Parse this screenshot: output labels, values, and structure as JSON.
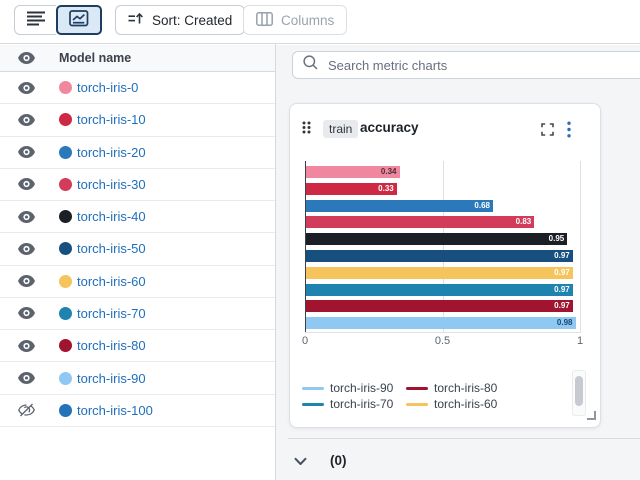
{
  "toolbar": {
    "sort_label": "Sort: Created",
    "columns_label": "Columns"
  },
  "sidebar": {
    "header": "Model name",
    "rows": [
      {
        "name": "torch-iris-0",
        "color": "#F0879F",
        "visible": true
      },
      {
        "name": "torch-iris-10",
        "color": "#CD2945",
        "visible": true
      },
      {
        "name": "torch-iris-20",
        "color": "#2B79BA",
        "visible": true
      },
      {
        "name": "torch-iris-30",
        "color": "#D23B59",
        "visible": true
      },
      {
        "name": "torch-iris-40",
        "color": "#1C2026",
        "visible": true
      },
      {
        "name": "torch-iris-50",
        "color": "#17507F",
        "visible": true
      },
      {
        "name": "torch-iris-60",
        "color": "#F5C45C",
        "visible": true
      },
      {
        "name": "torch-iris-70",
        "color": "#1F83B0",
        "visible": true
      },
      {
        "name": "torch-iris-80",
        "color": "#A11430",
        "visible": true
      },
      {
        "name": "torch-iris-90",
        "color": "#8FC8F2",
        "visible": true
      },
      {
        "name": "torch-iris-100",
        "color": "#2273B8",
        "visible": false
      }
    ]
  },
  "search": {
    "placeholder": "Search metric charts"
  },
  "chart_card": {
    "badge": "train",
    "title": "accuracy"
  },
  "chart_data": {
    "type": "bar",
    "orientation": "horizontal",
    "title": "train accuracy",
    "categories": [
      "torch-iris-0",
      "torch-iris-10",
      "torch-iris-20",
      "torch-iris-30",
      "torch-iris-40",
      "torch-iris-50",
      "torch-iris-60",
      "torch-iris-70",
      "torch-iris-80",
      "torch-iris-90"
    ],
    "values": [
      0.34,
      0.33,
      0.68,
      0.83,
      0.95,
      0.97,
      0.97,
      0.97,
      0.97,
      0.98
    ],
    "colors": [
      "#F0879F",
      "#CD2945",
      "#2B79BA",
      "#D23B59",
      "#1C2026",
      "#17507F",
      "#F5C45C",
      "#1F83B0",
      "#A11430",
      "#8FC8F2"
    ],
    "bar_label_colors": [
      "#4a2e37",
      "#ffffff",
      "#ffffff",
      "#ffffff",
      "#ffffff",
      "#ffffff",
      "#ffffff",
      "#ffffff",
      "#ffffff",
      "#16486e"
    ],
    "xlim": [
      0,
      1
    ],
    "xticks": [
      {
        "label": "0",
        "frac": 0
      },
      {
        "label": "0.5",
        "frac": 0.5
      },
      {
        "label": "1",
        "frac": 1
      }
    ],
    "gridlines": [
      0.5,
      1
    ],
    "grid": true,
    "legend_position": "bottom",
    "legend": [
      {
        "label": "torch-iris-90",
        "color": "#8FC8F2"
      },
      {
        "label": "torch-iris-80",
        "color": "#A11430"
      },
      {
        "label": "torch-iris-70",
        "color": "#1F83B0"
      },
      {
        "label": "torch-iris-60",
        "color": "#F5C45C"
      }
    ]
  },
  "panel": {
    "collapsed_count": "(0)"
  },
  "icons": {
    "list_view": "list-icon",
    "chart_view": "line-chart-icon",
    "sort": "sort-ascending-icon",
    "columns": "columns-icon",
    "visibility": "eye-icon",
    "hidden": "eye-off-icon",
    "search": "magnifier-icon",
    "drag": "drag-handle-dots",
    "fullscreen": "expand-corners-icon",
    "menu": "kebab-menu-icon",
    "collapse": "chevron-down-icon"
  },
  "colors": {
    "link_blue": "#1e6fbb",
    "accent_navy": "#1d3e5f",
    "selected_button_bg": "#dbe8f6",
    "panel_bg": "#f4f5f7",
    "border": "#d7dbe0"
  }
}
